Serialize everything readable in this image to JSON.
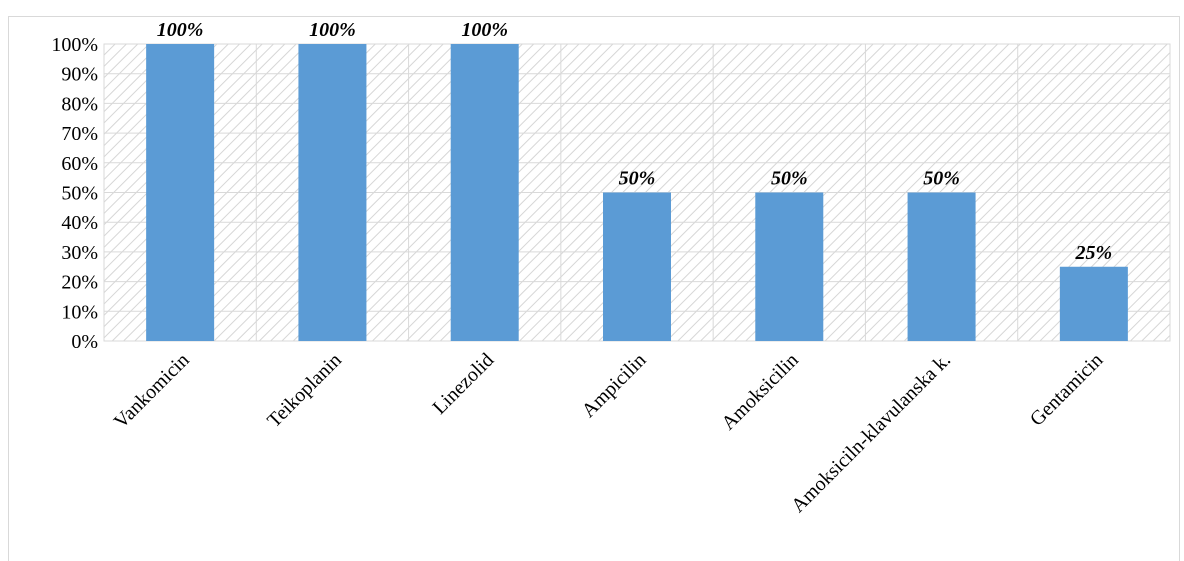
{
  "chart_data": {
    "type": "bar",
    "categories": [
      "Vankomicin",
      "Teikoplanin",
      "Linezolid",
      "Ampicilin",
      "Amoksicilin",
      "Amoksiciln-klavulanska k.",
      "Gentamicin"
    ],
    "values": [
      100,
      100,
      100,
      50,
      50,
      50,
      25
    ],
    "data_labels": [
      "100%",
      "100%",
      "100%",
      "50%",
      "50%",
      "50%",
      "25%"
    ],
    "y_ticks": [
      "0%",
      "10%",
      "20%",
      "30%",
      "40%",
      "50%",
      "60%",
      "70%",
      "80%",
      "90%",
      "100%"
    ],
    "ylim": [
      0,
      100
    ],
    "grid": true,
    "bar_color": "#5b9bd5",
    "title": "",
    "xlabel": "",
    "ylabel": ""
  }
}
